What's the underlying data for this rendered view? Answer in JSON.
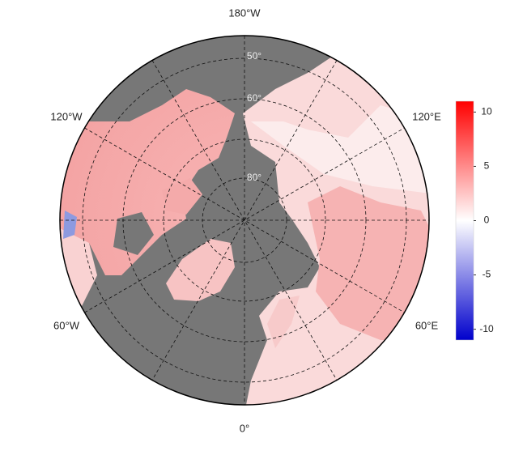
{
  "map": {
    "meridian_labels": [
      "180°W",
      "120°E",
      "60°E",
      "0°",
      "60°W",
      "120°W"
    ],
    "parallel_labels": [
      "50°",
      "60°",
      "80°"
    ]
  },
  "colorbar": {
    "range": [
      -11,
      11
    ],
    "ticks": [
      10,
      5,
      0,
      -5,
      -10
    ],
    "low_color": "#0000cc",
    "mid_color": "#ffffff",
    "high_color": "#ff0000"
  }
}
